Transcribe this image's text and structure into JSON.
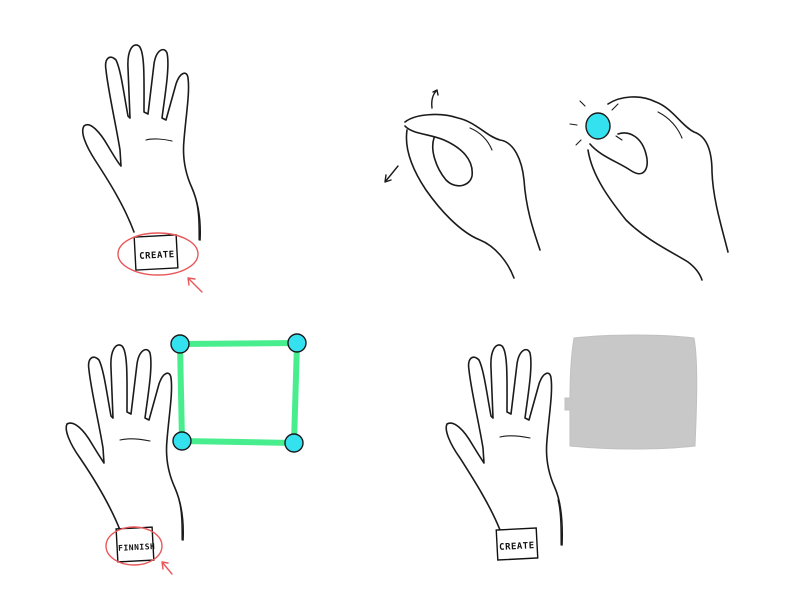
{
  "panels": {
    "create_step": {
      "wrist_button_label": "CREATE"
    },
    "pinch_step": {},
    "finish_step": {
      "wrist_button_label": "FINNISH"
    },
    "result_step": {
      "wrist_button_label": "CREATE"
    }
  },
  "colors": {
    "ink": "#1b1b1b",
    "highlight_red": "#e8585a",
    "pinch_point_cyan": "#33e1ef",
    "outline_green": "#48ee8d",
    "created_surface_gray": "#c8c8c8"
  },
  "icons": [
    "rotate-arrow-icon",
    "drag-arrow-icon",
    "sparkle-icon"
  ]
}
